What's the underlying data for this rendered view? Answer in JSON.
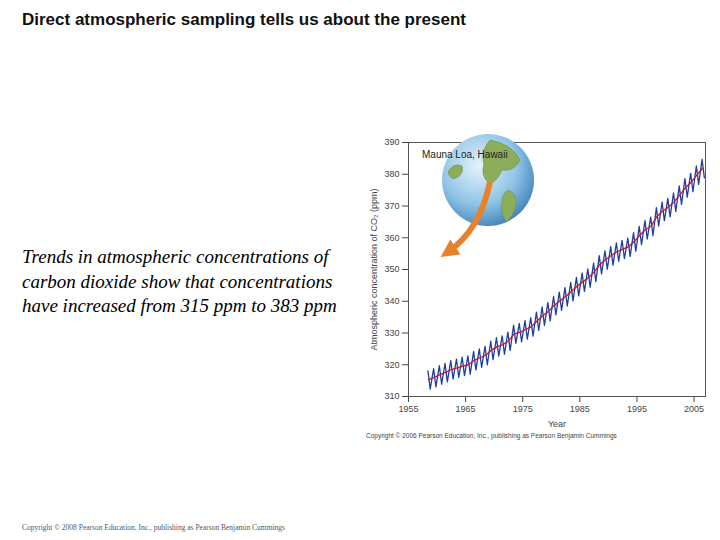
{
  "title": "Direct atmospheric sampling tells us about the present",
  "text": "Trends in atmospheric concentrations of carbon dioxide show that concentrations have increased from 315 ppm to 383 ppm",
  "footer": "Copyright © 2008 Pearson Education, Inc., publishing as Pearson Benjamin Cummings",
  "chart_data": {
    "type": "line",
    "caption": "Copyright © 2006 Pearson Education, Inc., publishing as Pearson Benjamin Cummings",
    "annotations": [
      "Mauna Loa, Hawaii"
    ],
    "x_label": "Year",
    "y_label": "Atmospheric concentration of CO₂ (ppm)",
    "xlim": [
      1955,
      2007
    ],
    "xticks": [
      1955,
      1965,
      1975,
      1985,
      1995,
      2005
    ],
    "ylim": [
      310,
      390
    ],
    "yticks": [
      310,
      320,
      330,
      340,
      350,
      360,
      370,
      380,
      390
    ],
    "grid": false,
    "series": [
      {
        "color": "#1f3fa0",
        "x": [
          1958.4,
          1958.8,
          1959.4,
          1959.8,
          1960.4,
          1960.8,
          1961.4,
          1961.8,
          1962.4,
          1962.8,
          1963.4,
          1963.8,
          1964.4,
          1964.8,
          1965.4,
          1965.8,
          1966.4,
          1966.8,
          1967.4,
          1967.8,
          1968.4,
          1968.8,
          1969.4,
          1969.8,
          1970.4,
          1970.8,
          1971.4,
          1971.8,
          1972.4,
          1972.8,
          1973.4,
          1973.8,
          1974.4,
          1974.8,
          1975.4,
          1975.8,
          1976.4,
          1976.8,
          1977.4,
          1977.8,
          1978.4,
          1978.8,
          1979.4,
          1979.8,
          1980.4,
          1980.8,
          1981.4,
          1981.8,
          1982.4,
          1982.8,
          1983.4,
          1983.8,
          1984.4,
          1984.8,
          1985.4,
          1985.8,
          1986.4,
          1986.8,
          1987.4,
          1987.8,
          1988.4,
          1988.8,
          1989.4,
          1989.8,
          1990.4,
          1990.8,
          1991.4,
          1991.8,
          1992.4,
          1992.8,
          1993.4,
          1993.8,
          1994.4,
          1994.8,
          1995.4,
          1995.8,
          1996.4,
          1996.8,
          1997.4,
          1997.8,
          1998.4,
          1998.8,
          1999.4,
          1999.8,
          2000.4,
          2000.8,
          2001.4,
          2001.8,
          2002.4,
          2002.8,
          2003.4,
          2003.8,
          2004.4,
          2004.8,
          2005.4,
          2005.8,
          2006.4,
          2006.8
        ],
        "values": [
          318.1,
          312.3,
          318.8,
          313.0,
          319.7,
          313.9,
          320.4,
          314.6,
          321.3,
          315.5,
          321.8,
          316.0,
          322.4,
          316.6,
          322.8,
          317.0,
          324.2,
          318.4,
          325.0,
          319.2,
          325.8,
          320.0,
          327.4,
          321.6,
          328.5,
          322.7,
          329.1,
          323.3,
          330.3,
          324.5,
          332.5,
          326.7,
          333.0,
          327.2,
          333.9,
          328.1,
          334.8,
          329.0,
          336.6,
          330.8,
          338.2,
          332.4,
          339.6,
          333.8,
          341.5,
          335.7,
          342.9,
          337.1,
          344.3,
          338.5,
          345.9,
          340.1,
          347.5,
          341.7,
          348.9,
          343.1,
          350.2,
          344.4,
          352.0,
          346.2,
          354.4,
          348.6,
          355.9,
          350.1,
          357.2,
          351.4,
          358.4,
          352.6,
          359.2,
          353.4,
          359.9,
          354.1,
          361.6,
          355.8,
          363.6,
          357.8,
          365.4,
          359.6,
          366.5,
          360.7,
          369.5,
          363.7,
          371.2,
          365.4,
          372.4,
          366.6,
          374.1,
          368.3,
          376.3,
          370.5,
          378.6,
          372.8,
          380.3,
          374.5,
          382.6,
          376.8,
          384.7,
          378.9
        ]
      },
      {
        "color": "#c0182a",
        "x": [
          1958.5,
          1959.5,
          1960.5,
          1961.5,
          1962.5,
          1963.5,
          1964.5,
          1965.5,
          1966.5,
          1967.5,
          1968.5,
          1969.5,
          1970.5,
          1971.5,
          1972.5,
          1973.5,
          1974.5,
          1975.5,
          1976.5,
          1977.5,
          1978.5,
          1979.5,
          1980.5,
          1981.5,
          1982.5,
          1983.5,
          1984.5,
          1985.5,
          1986.5,
          1987.5,
          1988.5,
          1989.5,
          1990.5,
          1991.5,
          1992.5,
          1993.5,
          1994.5,
          1995.5,
          1996.5,
          1997.5,
          1998.5,
          1999.5,
          2000.5,
          2001.5,
          2002.5,
          2003.5,
          2004.5,
          2005.5,
          2006.5
        ],
        "values": [
          315.3,
          316.0,
          316.9,
          317.6,
          318.5,
          319.0,
          319.6,
          320.0,
          321.4,
          322.2,
          323.0,
          324.6,
          325.7,
          326.3,
          327.5,
          329.7,
          330.2,
          331.1,
          332.0,
          333.8,
          335.4,
          336.8,
          338.7,
          340.1,
          341.5,
          343.1,
          344.7,
          346.1,
          347.4,
          349.2,
          351.6,
          353.1,
          354.4,
          355.6,
          356.4,
          357.1,
          358.8,
          360.8,
          362.6,
          363.7,
          366.7,
          368.4,
          369.6,
          371.3,
          373.5,
          375.8,
          377.5,
          379.8,
          381.9
        ]
      }
    ]
  }
}
